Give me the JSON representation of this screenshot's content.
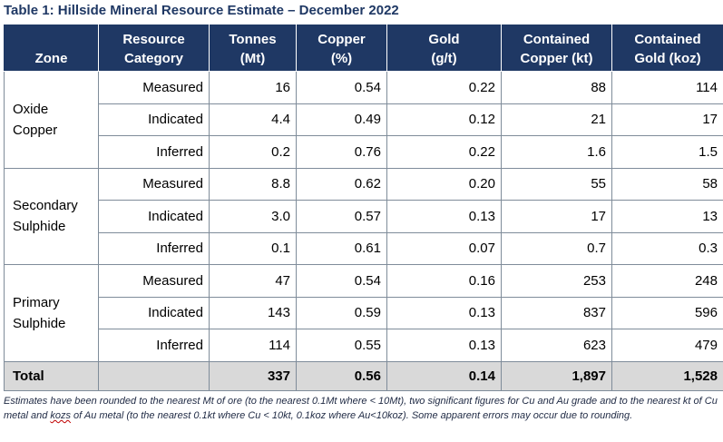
{
  "title": "Table 1: Hillside Mineral Resource Estimate – December 2022",
  "headers": {
    "zone": "Zone",
    "category": [
      "Resource",
      "Category"
    ],
    "tonnes": [
      "Tonnes",
      "(Mt)"
    ],
    "copper": [
      "Copper",
      "(%)"
    ],
    "gold": [
      "Gold",
      "(g/t)"
    ],
    "contained_copper": [
      "Contained",
      "Copper (kt)"
    ],
    "contained_gold": [
      "Contained",
      "Gold (koz)"
    ]
  },
  "zones": [
    {
      "name": [
        "Oxide",
        "Copper"
      ],
      "rows": [
        {
          "category": "Measured",
          "tonnes": "16",
          "copper": "0.54",
          "gold": "0.22",
          "cu_kt": "88",
          "au_koz": "114"
        },
        {
          "category": "Indicated",
          "tonnes": "4.4",
          "copper": "0.49",
          "gold": "0.12",
          "cu_kt": "21",
          "au_koz": "17"
        },
        {
          "category": "Inferred",
          "tonnes": "0.2",
          "copper": "0.76",
          "gold": "0.22",
          "cu_kt": "1.6",
          "au_koz": "1.5"
        }
      ]
    },
    {
      "name": [
        "Secondary",
        "Sulphide"
      ],
      "rows": [
        {
          "category": "Measured",
          "tonnes": "8.8",
          "copper": "0.62",
          "gold": "0.20",
          "cu_kt": "55",
          "au_koz": "58"
        },
        {
          "category": "Indicated",
          "tonnes": "3.0",
          "copper": "0.57",
          "gold": "0.13",
          "cu_kt": "17",
          "au_koz": "13"
        },
        {
          "category": "Inferred",
          "tonnes": "0.1",
          "copper": "0.61",
          "gold": "0.07",
          "cu_kt": "0.7",
          "au_koz": "0.3"
        }
      ]
    },
    {
      "name": [
        "Primary",
        "Sulphide"
      ],
      "rows": [
        {
          "category": "Measured",
          "tonnes": "47",
          "copper": "0.54",
          "gold": "0.16",
          "cu_kt": "253",
          "au_koz": "248"
        },
        {
          "category": "Indicated",
          "tonnes": "143",
          "copper": "0.59",
          "gold": "0.13",
          "cu_kt": "837",
          "au_koz": "596"
        },
        {
          "category": "Inferred",
          "tonnes": "114",
          "copper": "0.55",
          "gold": "0.13",
          "cu_kt": "623",
          "au_koz": "479"
        }
      ]
    }
  ],
  "total": {
    "label": "Total",
    "category": "",
    "tonnes": "337",
    "copper": "0.56",
    "gold": "0.14",
    "cu_kt": "1,897",
    "au_koz": "1,528"
  },
  "footnote": {
    "part1": "Estimates have been rounded to the nearest Mt of ore (to the nearest 0.1Mt where < 10Mt), two significant figures for Cu and Au grade and to the nearest kt of Cu metal and ",
    "flagged_word": "kozs",
    "part2": " of Au metal (to the nearest 0.1kt where Cu < 10kt, 0.1koz where Au<10koz). Some apparent errors may occur due to rounding."
  },
  "colors": {
    "header_bg": "#1f3864",
    "title_text": "#1f3864",
    "total_bg": "#d9d9d9",
    "spellcheck_underline": "#c00000"
  }
}
